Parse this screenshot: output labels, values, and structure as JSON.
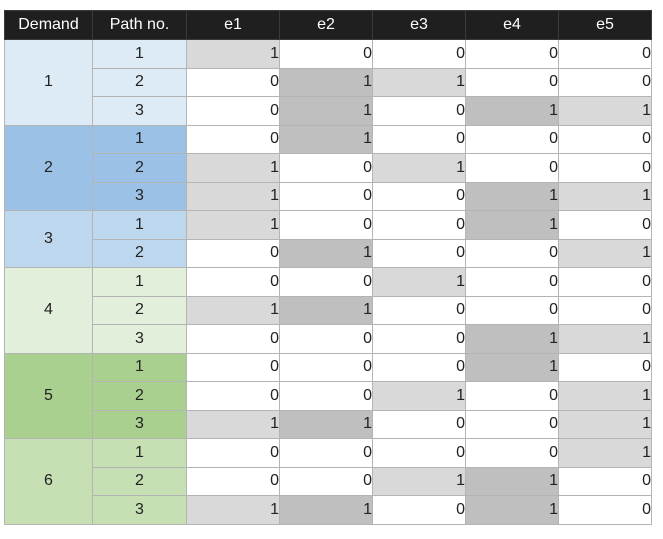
{
  "headers": [
    "Demand",
    "Path no.",
    "e1",
    "e2",
    "e3",
    "e4",
    "e5"
  ],
  "colors": {
    "demand_1": "#ddebf7",
    "demand_2": "#9bc2e6",
    "demand_3": "#bdd7ee",
    "demand_4": "#e2efda",
    "demand_5": "#a9d08e",
    "demand_6": "#c6e0b4",
    "highlight_light": "#d9d9d9",
    "highlight_dark": "#bfbfbf",
    "header_bg": "#1f1f1f"
  },
  "groups": [
    {
      "demand": "1",
      "color": "#ddebf7",
      "rows": [
        {
          "path": "1",
          "values": [
            "1",
            "0",
            "0",
            "0",
            "0"
          ],
          "shade": [
            "light",
            "",
            "",
            "",
            ""
          ]
        },
        {
          "path": "2",
          "values": [
            "0",
            "1",
            "1",
            "0",
            "0"
          ],
          "shade": [
            "",
            "dark",
            "light",
            "",
            ""
          ]
        },
        {
          "path": "3",
          "values": [
            "0",
            "1",
            "0",
            "1",
            "1"
          ],
          "shade": [
            "",
            "dark",
            "",
            "dark",
            "light"
          ]
        }
      ]
    },
    {
      "demand": "2",
      "color": "#9bc2e6",
      "rows": [
        {
          "path": "1",
          "values": [
            "0",
            "1",
            "0",
            "0",
            "0"
          ],
          "shade": [
            "",
            "dark",
            "",
            "",
            ""
          ]
        },
        {
          "path": "2",
          "values": [
            "1",
            "0",
            "1",
            "0",
            "0"
          ],
          "shade": [
            "light",
            "",
            "light",
            "",
            ""
          ]
        },
        {
          "path": "3",
          "values": [
            "1",
            "0",
            "0",
            "1",
            "1"
          ],
          "shade": [
            "light",
            "",
            "",
            "dark",
            "light"
          ]
        }
      ]
    },
    {
      "demand": "3",
      "color": "#bdd7ee",
      "rows": [
        {
          "path": "1",
          "values": [
            "1",
            "0",
            "0",
            "1",
            "0"
          ],
          "shade": [
            "light",
            "",
            "",
            "dark",
            ""
          ]
        },
        {
          "path": "2",
          "values": [
            "0",
            "1",
            "0",
            "0",
            "1"
          ],
          "shade": [
            "",
            "dark",
            "",
            "",
            "light"
          ]
        }
      ]
    },
    {
      "demand": "4",
      "color": "#e2efda",
      "rows": [
        {
          "path": "1",
          "values": [
            "0",
            "0",
            "1",
            "0",
            "0"
          ],
          "shade": [
            "",
            "",
            "light",
            "",
            ""
          ]
        },
        {
          "path": "2",
          "values": [
            "1",
            "1",
            "0",
            "0",
            "0"
          ],
          "shade": [
            "light",
            "dark",
            "",
            "",
            ""
          ]
        },
        {
          "path": "3",
          "values": [
            "0",
            "0",
            "0",
            "1",
            "1"
          ],
          "shade": [
            "",
            "",
            "",
            "dark",
            "light"
          ]
        }
      ]
    },
    {
      "demand": "5",
      "color": "#a9d08e",
      "rows": [
        {
          "path": "1",
          "values": [
            "0",
            "0",
            "0",
            "1",
            "0"
          ],
          "shade": [
            "",
            "",
            "",
            "dark",
            ""
          ]
        },
        {
          "path": "2",
          "values": [
            "0",
            "0",
            "1",
            "0",
            "1"
          ],
          "shade": [
            "",
            "",
            "light",
            "",
            "light"
          ]
        },
        {
          "path": "3",
          "values": [
            "1",
            "1",
            "0",
            "0",
            "1"
          ],
          "shade": [
            "light",
            "dark",
            "",
            "",
            "light"
          ]
        }
      ]
    },
    {
      "demand": "6",
      "color": "#c6e0b4",
      "rows": [
        {
          "path": "1",
          "values": [
            "0",
            "0",
            "0",
            "0",
            "1"
          ],
          "shade": [
            "",
            "",
            "",
            "",
            "light"
          ]
        },
        {
          "path": "2",
          "values": [
            "0",
            "0",
            "1",
            "1",
            "0"
          ],
          "shade": [
            "",
            "",
            "light",
            "dark",
            ""
          ]
        },
        {
          "path": "3",
          "values": [
            "1",
            "1",
            "0",
            "1",
            "0"
          ],
          "shade": [
            "light",
            "dark",
            "",
            "dark",
            ""
          ]
        }
      ]
    }
  ]
}
